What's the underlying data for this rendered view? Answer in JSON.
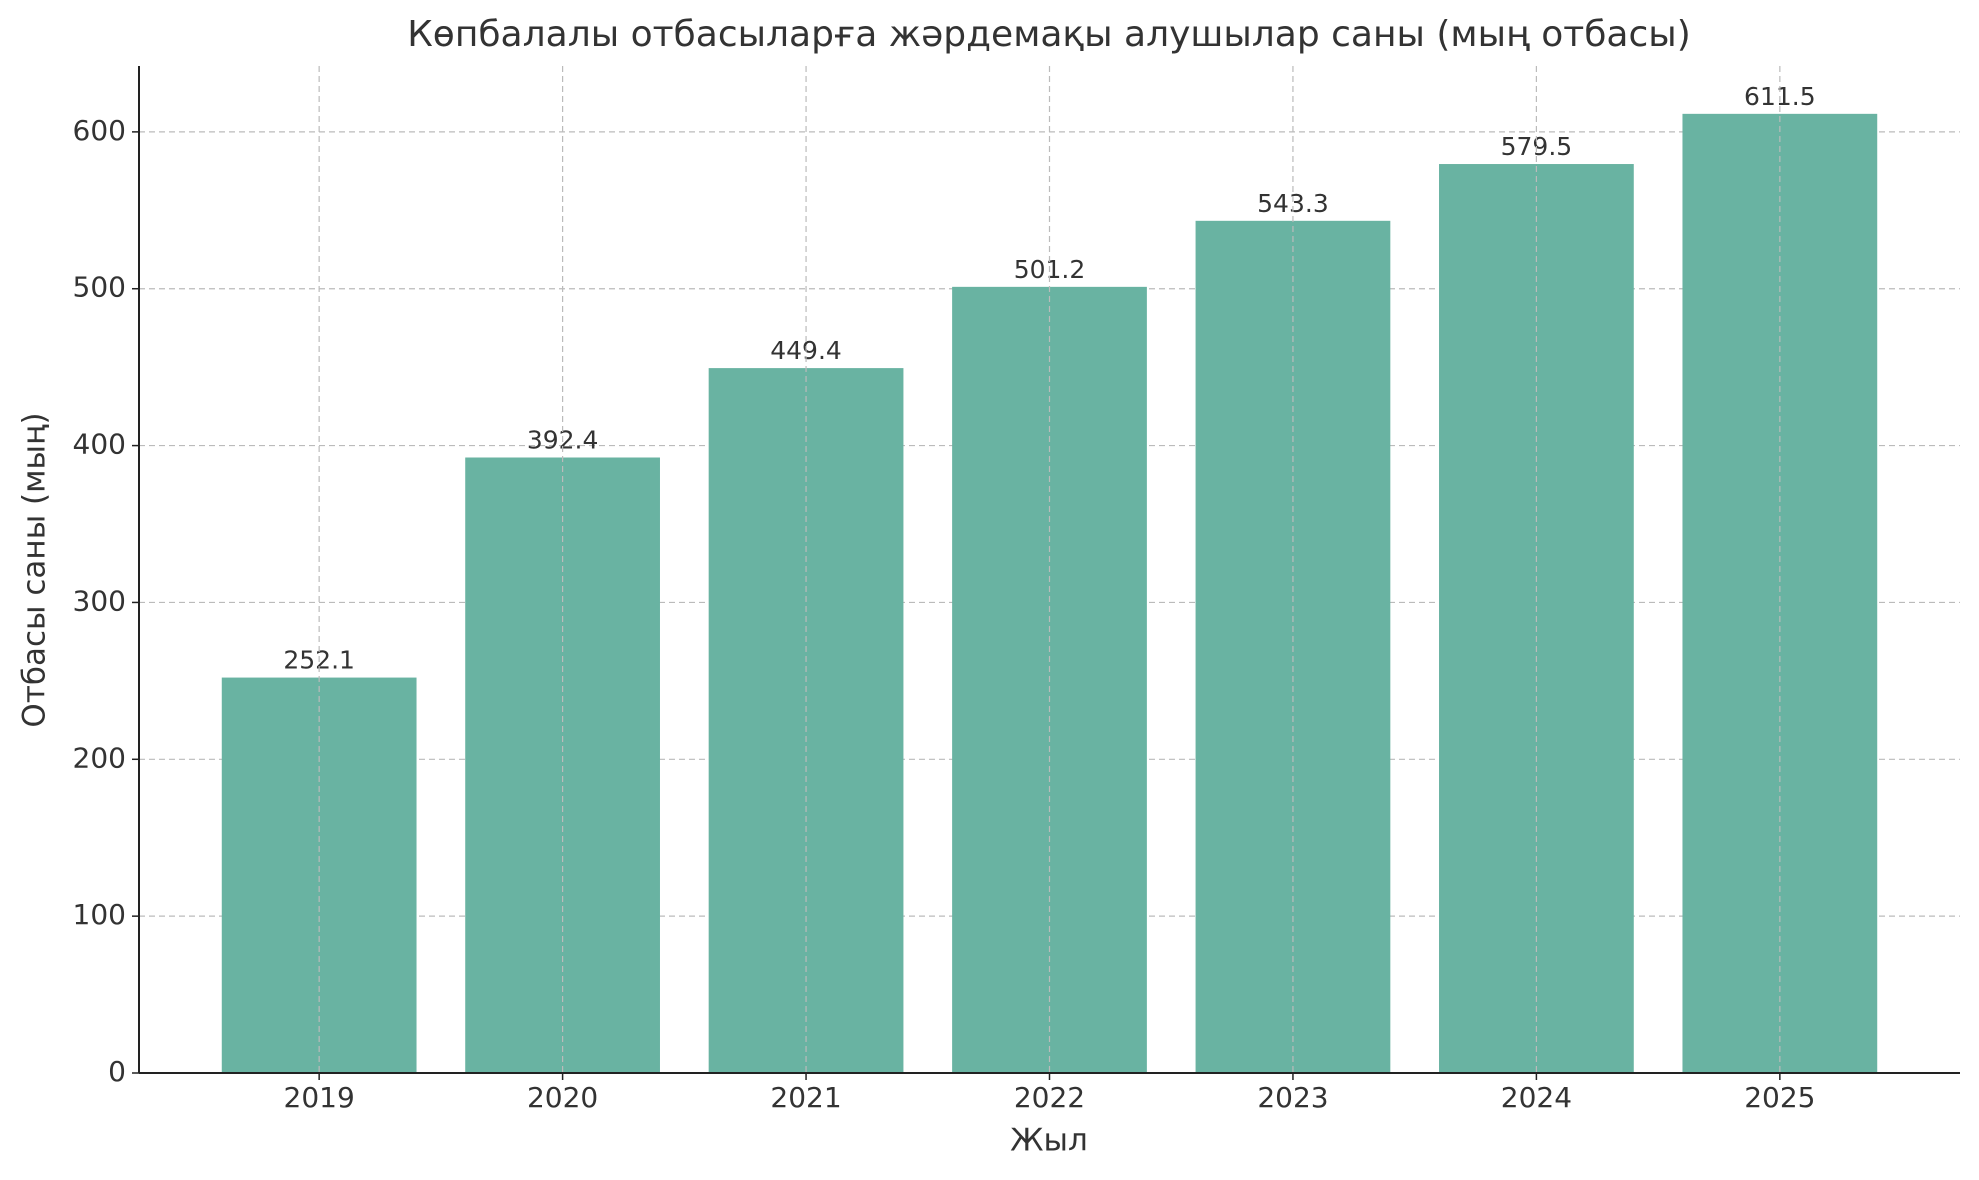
{
  "chart_data": {
    "type": "bar",
    "title": "Көпбалалы отбасыларға жәрдемақы алушылар саны (мың отбасы)",
    "x_label": "Жыл",
    "y_label": "Отбасы саны (мың)",
    "categories": [
      "2019",
      "2020",
      "2021",
      "2022",
      "2023",
      "2024",
      "2025"
    ],
    "values": [
      252.1,
      392.4,
      449.4,
      501.2,
      543.3,
      579.5,
      611.5
    ],
    "color": "#69b3a2",
    "ylim": [
      0,
      642
    ],
    "yticks": [
      0,
      100,
      200,
      300,
      400,
      500,
      600
    ],
    "grid": true
  }
}
